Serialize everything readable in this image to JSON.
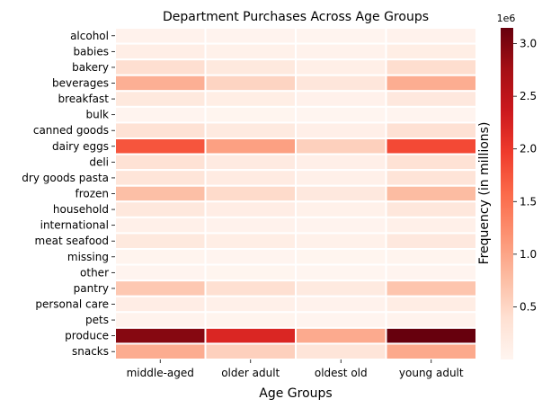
{
  "chart_data": {
    "type": "heatmap",
    "title": "Department Purchases Across Age Groups",
    "xlabel": "Age Groups",
    "ylabel": "",
    "colorbar_label": "Frequency (in millions)",
    "colorbar_multiplier": "1e6",
    "colorbar_range": [
      0,
      3150000
    ],
    "colorbar_ticks": [
      "0.5",
      "1.0",
      "1.5",
      "2.0",
      "2.5",
      "3.0"
    ],
    "colorbar_tick_values": [
      0.5,
      1.0,
      1.5,
      2.0,
      2.5,
      3.0
    ],
    "colormap": "Reds",
    "colors": {
      "low": "#fff5f0",
      "high": "#67000d",
      "cell_border": "#ffffff"
    },
    "columns": [
      "middle-aged",
      "older adult",
      "oldest old",
      "young adult"
    ],
    "rows": [
      "alcohol",
      "babies",
      "bakery",
      "beverages",
      "breakfast",
      "bulk",
      "canned goods",
      "dairy eggs",
      "deli",
      "dry goods pasta",
      "frozen",
      "household",
      "international",
      "meat seafood",
      "missing",
      "other",
      "pantry",
      "personal care",
      "pets",
      "produce",
      "snacks"
    ],
    "values": [
      [
        50000,
        30000,
        15000,
        50000
      ],
      [
        130000,
        80000,
        50000,
        140000
      ],
      [
        400000,
        230000,
        120000,
        420000
      ],
      [
        900000,
        520000,
        280000,
        920000
      ],
      [
        230000,
        140000,
        70000,
        240000
      ],
      [
        12000,
        7000,
        4000,
        12000
      ],
      [
        350000,
        210000,
        110000,
        370000
      ],
      [
        1750000,
        1050000,
        560000,
        1850000
      ],
      [
        350000,
        200000,
        110000,
        360000
      ],
      [
        300000,
        180000,
        95000,
        320000
      ],
      [
        750000,
        450000,
        240000,
        780000
      ],
      [
        250000,
        150000,
        80000,
        260000
      ],
      [
        90000,
        55000,
        30000,
        95000
      ],
      [
        230000,
        140000,
        75000,
        240000
      ],
      [
        25000,
        15000,
        8000,
        25000
      ],
      [
        12000,
        7000,
        4000,
        12000
      ],
      [
        650000,
        390000,
        210000,
        680000
      ],
      [
        150000,
        90000,
        47000,
        155000
      ],
      [
        35000,
        20000,
        10000,
        35000
      ],
      [
        2950000,
        2200000,
        950000,
        3150000
      ],
      [
        930000,
        560000,
        300000,
        960000
      ]
    ]
  }
}
